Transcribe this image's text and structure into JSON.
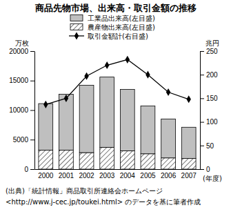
{
  "chart_data": {
    "type": "bar",
    "title": "商品先物市場、出来高・取引金額の推移",
    "categories": [
      "2000",
      "2001",
      "2002",
      "2003",
      "2004",
      "2005",
      "2006",
      "2007"
    ],
    "x_label": "(年度)",
    "y_label": "万枚",
    "y2_label": "兆円",
    "stacked": true,
    "legend": "upper center",
    "ylim": [
      0,
      20000
    ],
    "yticks": [
      0,
      5000,
      10000,
      15000,
      20000
    ],
    "y2lim": [
      0,
      250
    ],
    "y2ticks": [
      0,
      50,
      100,
      150,
      200,
      250
    ],
    "series": [
      {
        "name": "農産物出来高(左目盛)",
        "type": "bar",
        "color": "#777777",
        "line_style": "hatch",
        "values": [
          3200,
          3200,
          2800,
          3700,
          3100,
          2600,
          1900,
          1800
        ]
      },
      {
        "name": "工業品出来高(左目盛)",
        "type": "bar",
        "color": "#bfbfbf",
        "values": [
          7900,
          9500,
          11400,
          11900,
          10400,
          8100,
          6600,
          5300
        ]
      },
      {
        "name": "取引金額計(右目盛)",
        "type": "line",
        "axis": "y2",
        "color": "#000000",
        "marker": "diamond",
        "line_style": "solid",
        "values": [
          137,
          150,
          197,
          220,
          232,
          200,
          163,
          148
        ]
      }
    ],
    "source": [
      "(出典)「統計情報」商品取引所連絡会ホームページ",
      "<http://www.j-cec.jp/toukei.html> のデータを基に筆者作成"
    ]
  }
}
